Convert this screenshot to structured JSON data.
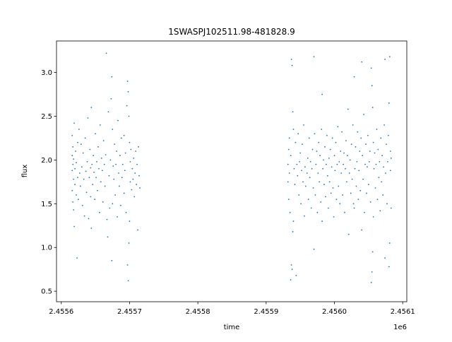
{
  "chart_data": {
    "type": "scatter",
    "title": "1SWASPJ102511.98-481828.9",
    "xlabel": "time",
    "ylabel": "flux",
    "x_offset_label": "1e6",
    "x_scale": 1000000,
    "xlim": [
      2455593,
      2456106
    ],
    "ylim": [
      0.38,
      3.36
    ],
    "xticks": [
      {
        "value": 2455600,
        "label": "2.4556"
      },
      {
        "value": 2455700,
        "label": "2.4557"
      },
      {
        "value": 2455800,
        "label": "2.4558"
      },
      {
        "value": 2455900,
        "label": "2.4559"
      },
      {
        "value": 2456000,
        "label": "2.4560"
      },
      {
        "value": 2456100,
        "label": "2.4561"
      }
    ],
    "yticks": [
      {
        "value": 0.5,
        "label": "0.5"
      },
      {
        "value": 1.0,
        "label": "1.0"
      },
      {
        "value": 1.5,
        "label": "1.5"
      },
      {
        "value": 2.0,
        "label": "2.0"
      },
      {
        "value": 2.5,
        "label": "2.5"
      },
      {
        "value": 3.0,
        "label": "3.0"
      }
    ],
    "grid": false,
    "marker_color": "#1f77b4",
    "series": [
      {
        "points": [
          [
            2455616,
            2.28
          ],
          [
            2455616,
            2.05
          ],
          [
            2455616,
            1.88
          ],
          [
            2455616,
            1.65
          ],
          [
            2455617,
            1.52
          ],
          [
            2455617,
            1.95
          ],
          [
            2455617,
            2.15
          ],
          [
            2455618,
            1.78
          ],
          [
            2455618,
            1.43
          ],
          [
            2455618,
            2.01
          ],
          [
            2455619,
            1.24
          ],
          [
            2455619,
            2.42
          ],
          [
            2455620,
            1.9
          ],
          [
            2455620,
            1.72
          ],
          [
            2455621,
            2.1
          ],
          [
            2455622,
            1.6
          ],
          [
            2455622,
            1.97
          ],
          [
            2455623,
            0.88
          ],
          [
            2455624,
            2.2
          ],
          [
            2455624,
            1.8
          ],
          [
            2455625,
            1.55
          ],
          [
            2455626,
            2.35
          ],
          [
            2455627,
            1.85
          ],
          [
            2455628,
            1.7
          ],
          [
            2455629,
            2.18
          ],
          [
            2455630,
            1.92
          ],
          [
            2455631,
            1.48
          ],
          [
            2455632,
            2.08
          ],
          [
            2455633,
            1.78
          ],
          [
            2455634,
            1.36
          ],
          [
            2455635,
            2.25
          ],
          [
            2455636,
            1.87
          ],
          [
            2455637,
            1.63
          ],
          [
            2455638,
            1.98
          ],
          [
            2455639,
            2.48
          ],
          [
            2455640,
            1.33
          ],
          [
            2455641,
            1.8
          ],
          [
            2455642,
            2.12
          ],
          [
            2455643,
            1.91
          ],
          [
            2455643,
            1.58
          ],
          [
            2455644,
            2.6
          ],
          [
            2455644,
            1.22
          ],
          [
            2455645,
            1.95
          ],
          [
            2455646,
            1.72
          ],
          [
            2455647,
            2.05
          ],
          [
            2455648,
            1.86
          ],
          [
            2455649,
            1.55
          ],
          [
            2455650,
            2.3
          ],
          [
            2455651,
            1.8
          ],
          [
            2455652,
            1.98
          ],
          [
            2455653,
            1.65
          ],
          [
            2455654,
            2.15
          ],
          [
            2455655,
            1.9
          ],
          [
            2455656,
            1.4
          ],
          [
            2455657,
            2.4
          ],
          [
            2455658,
            1.75
          ],
          [
            2455659,
            2.02
          ],
          [
            2455660,
            1.88
          ],
          [
            2455661,
            1.52
          ],
          [
            2455662,
            2.22
          ],
          [
            2455663,
            1.95
          ],
          [
            2455664,
            1.7
          ],
          [
            2455665,
            2.06
          ],
          [
            2455666,
            3.22
          ],
          [
            2455667,
            1.32
          ],
          [
            2455668,
            1.12
          ],
          [
            2455669,
            2.55
          ],
          [
            2455670,
            1.82
          ],
          [
            2455671,
            1.45
          ],
          [
            2455672,
            2.0
          ],
          [
            2455673,
            2.7
          ],
          [
            2455674,
            2.95
          ],
          [
            2455674,
            0.85
          ],
          [
            2455675,
            2.35
          ],
          [
            2455675,
            1.5
          ],
          [
            2455676,
            1.93
          ],
          [
            2455677,
            1.78
          ],
          [
            2455678,
            2.18
          ],
          [
            2455679,
            1.6
          ],
          [
            2455680,
            1.95
          ],
          [
            2455681,
            2.1
          ],
          [
            2455682,
            1.35
          ],
          [
            2455683,
            2.45
          ],
          [
            2455684,
            1.85
          ],
          [
            2455685,
            1.7
          ],
          [
            2455686,
            2.05
          ],
          [
            2455687,
            1.48
          ],
          [
            2455688,
            2.25
          ],
          [
            2455689,
            1.8
          ],
          [
            2455690,
            1.95
          ],
          [
            2455692,
            2.28
          ],
          [
            2455692,
            1.62
          ],
          [
            2455693,
            1.88
          ],
          [
            2455694,
            2.08
          ],
          [
            2455695,
            1.4
          ],
          [
            2455696,
            2.62
          ],
          [
            2455697,
            2.9
          ],
          [
            2455697,
            0.8
          ],
          [
            2455698,
            2.78
          ],
          [
            2455698,
            0.62
          ],
          [
            2455699,
            2.5
          ],
          [
            2455699,
            1.05
          ],
          [
            2455700,
            2.2
          ],
          [
            2455700,
            1.3
          ],
          [
            2455701,
            1.75
          ],
          [
            2455701,
            1.98
          ],
          [
            2455702,
            2.12
          ],
          [
            2455703,
            1.66
          ],
          [
            2455704,
            1.9
          ],
          [
            2455705,
            1.78
          ],
          [
            2455706,
            2.02
          ],
          [
            2455707,
            1.58
          ],
          [
            2455708,
            1.85
          ],
          [
            2455709,
            2.1
          ],
          [
            2455710,
            1.72
          ],
          [
            2455711,
            1.95
          ],
          [
            2455712,
            1.2
          ],
          [
            2455713,
            2.15
          ],
          [
            2455714,
            1.82
          ],
          [
            2455715,
            1.68
          ],
          [
            2455932,
            1.95
          ],
          [
            2455932,
            1.75
          ],
          [
            2455933,
            2.12
          ],
          [
            2455933,
            1.55
          ],
          [
            2455934,
            1.85
          ],
          [
            2455934,
            2.25
          ],
          [
            2455935,
            1.4
          ],
          [
            2455936,
            2.05
          ],
          [
            2455936,
            0.63
          ],
          [
            2455937,
            3.15
          ],
          [
            2455937,
            0.8
          ],
          [
            2455938,
            3.08
          ],
          [
            2455938,
            0.75
          ],
          [
            2455939,
            2.55
          ],
          [
            2455939,
            1.18
          ],
          [
            2455940,
            2.35
          ],
          [
            2455940,
            1.3
          ],
          [
            2455941,
            1.9
          ],
          [
            2455942,
            1.72
          ],
          [
            2455943,
            2.2
          ],
          [
            2455944,
            0.68
          ],
          [
            2455945,
            1.95
          ],
          [
            2455946,
            1.82
          ],
          [
            2455947,
            2.3
          ],
          [
            2455948,
            1.6
          ],
          [
            2455949,
            1.98
          ],
          [
            2455950,
            2.08
          ],
          [
            2455951,
            1.5
          ],
          [
            2455952,
            1.88
          ],
          [
            2455953,
            2.18
          ],
          [
            2455954,
            1.75
          ],
          [
            2455955,
            2.4
          ],
          [
            2455956,
            1.36
          ],
          [
            2455957,
            1.92
          ],
          [
            2455958,
            1.7
          ],
          [
            2455960,
            1.85
          ],
          [
            2455961,
            2.02
          ],
          [
            2455962,
            1.55
          ],
          [
            2455963,
            2.25
          ],
          [
            2455964,
            1.8
          ],
          [
            2455965,
            1.98
          ],
          [
            2455966,
            1.45
          ],
          [
            2455967,
            1.9
          ],
          [
            2455968,
            2.12
          ],
          [
            2455969,
            1.68
          ],
          [
            2455970,
            3.18
          ],
          [
            2455970,
            0.98
          ],
          [
            2455971,
            2.3
          ],
          [
            2455972,
            1.6
          ],
          [
            2455973,
            1.95
          ],
          [
            2455974,
            2.1
          ],
          [
            2455975,
            1.4
          ],
          [
            2455976,
            1.85
          ],
          [
            2455977,
            2.2
          ],
          [
            2455978,
            1.75
          ],
          [
            2455979,
            2.05
          ],
          [
            2455980,
            1.52
          ],
          [
            2455981,
            2.35
          ],
          [
            2455982,
            2.75
          ],
          [
            2455982,
            1.3
          ],
          [
            2455983,
            1.9
          ],
          [
            2455984,
            2.0
          ],
          [
            2455985,
            1.72
          ],
          [
            2455986,
            2.15
          ],
          [
            2455987,
            1.58
          ],
          [
            2455988,
            1.95
          ],
          [
            2455989,
            2.28
          ],
          [
            2455990,
            1.82
          ],
          [
            2455991,
            1.45
          ],
          [
            2455992,
            2.02
          ],
          [
            2455993,
            1.75
          ],
          [
            2455994,
            2.12
          ],
          [
            2455995,
            1.62
          ],
          [
            2455996,
            1.92
          ],
          [
            2455997,
            2.25
          ],
          [
            2455998,
            1.68
          ],
          [
            2455999,
            1.35
          ],
          [
            2456000,
            2.05
          ],
          [
            2456001,
            1.88
          ],
          [
            2456002,
            2.2
          ],
          [
            2456003,
            1.55
          ],
          [
            2456004,
            1.95
          ],
          [
            2456005,
            2.38
          ],
          [
            2456006,
            1.7
          ],
          [
            2456007,
            1.98
          ],
          [
            2456008,
            1.5
          ],
          [
            2456009,
            2.1
          ],
          [
            2456010,
            1.85
          ],
          [
            2456011,
            2.32
          ],
          [
            2456012,
            1.6
          ],
          [
            2456013,
            1.95
          ],
          [
            2456014,
            2.08
          ],
          [
            2456015,
            1.4
          ],
          [
            2456016,
            1.9
          ],
          [
            2456017,
            2.22
          ],
          [
            2456018,
            1.75
          ],
          [
            2456019,
            2.05
          ],
          [
            2456020,
            2.58
          ],
          [
            2456021,
            1.15
          ],
          [
            2456022,
            1.85
          ],
          [
            2456023,
            2.0
          ],
          [
            2456024,
            1.62
          ],
          [
            2456025,
            2.18
          ],
          [
            2456026,
            1.78
          ],
          [
            2456027,
            2.4
          ],
          [
            2456028,
            1.5
          ],
          [
            2456029,
            2.95
          ],
          [
            2456029,
            1.45
          ],
          [
            2456030,
            1.9
          ],
          [
            2456031,
            2.15
          ],
          [
            2456032,
            1.7
          ],
          [
            2456033,
            1.98
          ],
          [
            2456034,
            2.32
          ],
          [
            2456035,
            1.55
          ],
          [
            2456036,
            1.88
          ],
          [
            2456037,
            2.1
          ],
          [
            2456038,
            1.65
          ],
          [
            2456039,
            2.25
          ],
          [
            2456040,
            3.12
          ],
          [
            2456040,
            1.2
          ],
          [
            2456041,
            2.05
          ],
          [
            2456042,
            1.78
          ],
          [
            2456043,
            2.52
          ],
          [
            2456044,
            1.4
          ],
          [
            2456045,
            1.95
          ],
          [
            2456046,
            2.18
          ],
          [
            2456047,
            1.62
          ],
          [
            2456048,
            1.92
          ],
          [
            2456049,
            2.28
          ],
          [
            2456050,
            1.72
          ],
          [
            2456051,
            1.98
          ],
          [
            2456052,
            2.1
          ],
          [
            2456053,
            1.52
          ],
          [
            2456054,
            3.05
          ],
          [
            2456054,
            0.6
          ],
          [
            2456055,
            2.85
          ],
          [
            2456055,
            0.72
          ],
          [
            2456056,
            2.6
          ],
          [
            2456056,
            0.95
          ],
          [
            2456057,
            2.2
          ],
          [
            2456057,
            1.35
          ],
          [
            2456058,
            1.9
          ],
          [
            2456059,
            2.08
          ],
          [
            2456060,
            1.68
          ],
          [
            2456061,
            1.95
          ],
          [
            2456062,
            2.35
          ],
          [
            2456063,
            1.55
          ],
          [
            2456064,
            2.12
          ],
          [
            2456065,
            1.8
          ],
          [
            2456066,
            1.98
          ],
          [
            2456067,
            1.42
          ],
          [
            2456068,
            2.25
          ],
          [
            2456069,
            1.75
          ],
          [
            2456070,
            2.05
          ],
          [
            2456071,
            1.6
          ],
          [
            2456072,
            1.92
          ],
          [
            2456073,
            2.4
          ],
          [
            2456074,
            3.15
          ],
          [
            2456074,
            0.88
          ],
          [
            2456075,
            1.85
          ],
          [
            2456076,
            2.18
          ],
          [
            2456077,
            1.5
          ],
          [
            2456078,
            1.98
          ],
          [
            2456079,
            2.28
          ],
          [
            2456080,
            2.65
          ],
          [
            2456080,
            0.78
          ],
          [
            2456081,
            3.18
          ],
          [
            2456081,
            1.05
          ],
          [
            2456082,
            1.88
          ],
          [
            2456082,
            2.1
          ],
          [
            2456083,
            1.45
          ],
          [
            2456083,
            2.02
          ]
        ]
      }
    ]
  }
}
